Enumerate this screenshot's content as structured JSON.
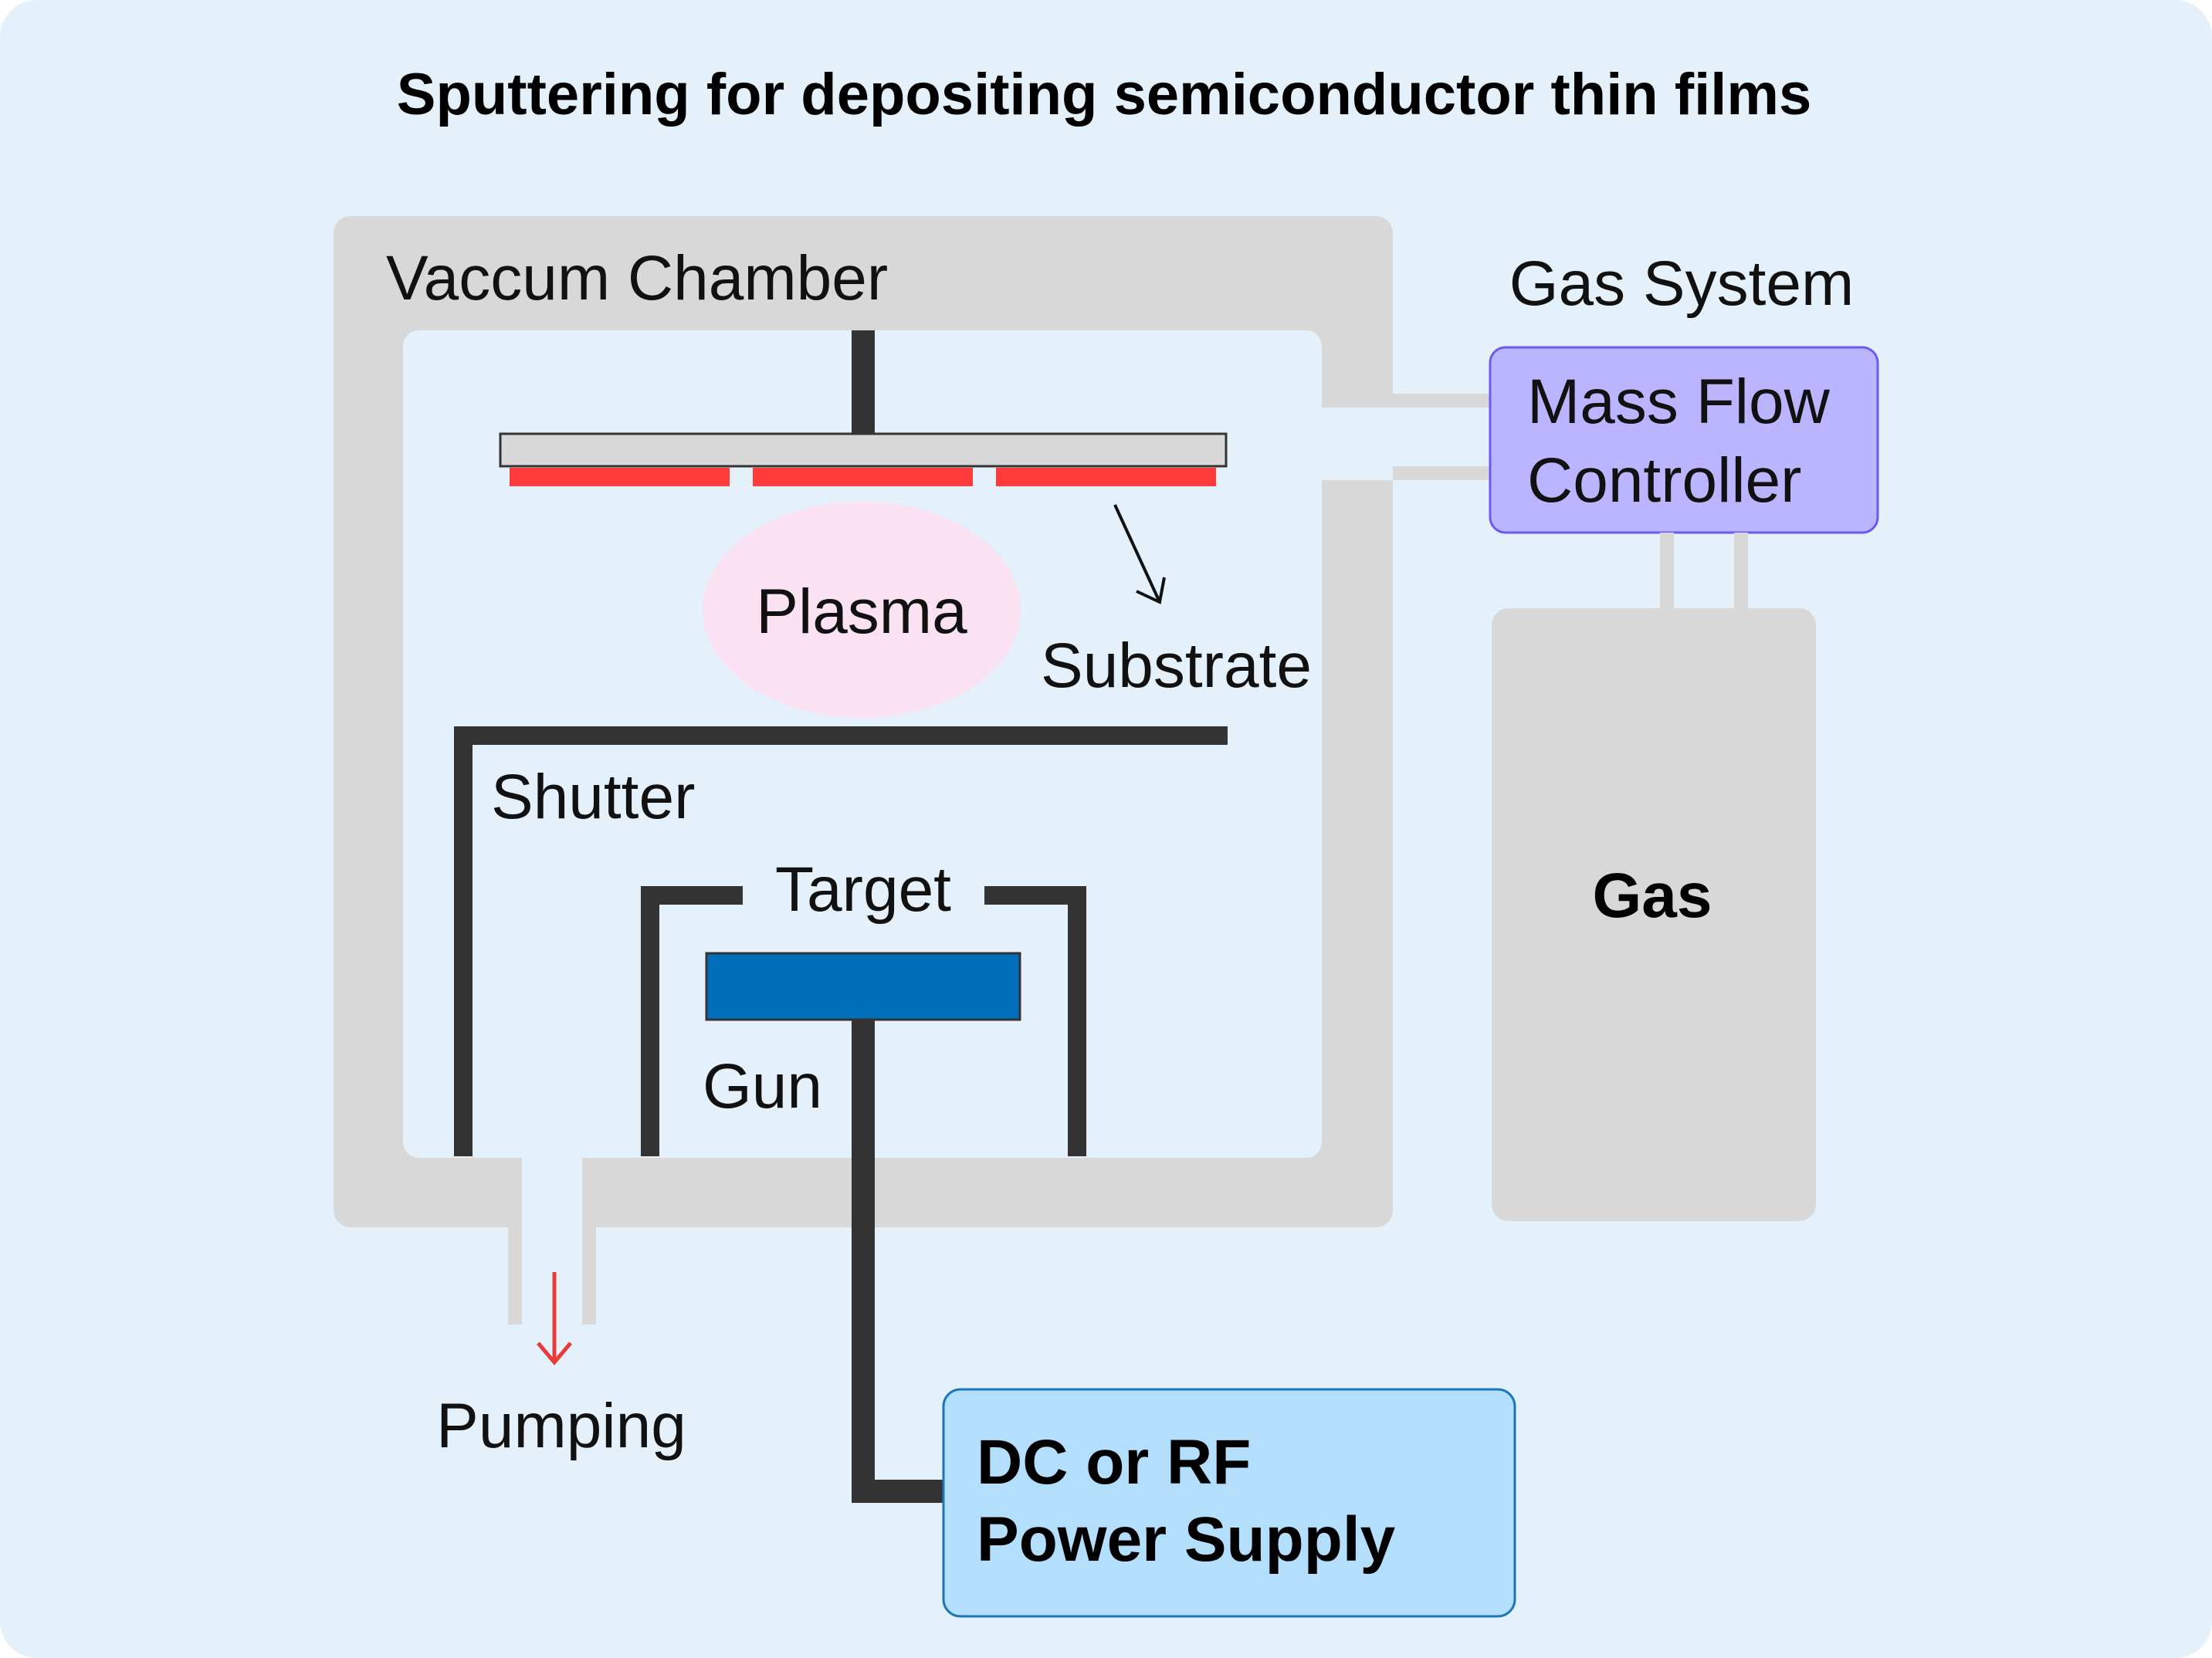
{
  "title": "Sputtering for depositing semiconductor thin films",
  "labels": {
    "vacuum_chamber": "Vaccum Chamber",
    "gas_system": "Gas System",
    "mass_flow_line1": "Mass Flow",
    "mass_flow_line2": "Controller",
    "plasma": "Plasma",
    "substrate": "Substrate",
    "shutter": "Shutter",
    "target": "Target",
    "gun": "Gun",
    "gas": "Gas",
    "pumping": "Pumping",
    "power_line1": "DC or RF",
    "power_line2": "Power Supply"
  },
  "colors": {
    "background": "#e4f0fa",
    "wall": "#d8d8d8",
    "inner": "#e4f0fa",
    "dark": "#333333",
    "substrate_plate": "#d8d8d8",
    "red_strip": "#ff3b3b",
    "plasma": "#fbe2f3",
    "target": "#006eba",
    "mass_flow": "#bbb5ff",
    "mass_flow_border": "#6a5af0",
    "power": "#b3dffd",
    "power_border": "#1a78b8",
    "pump_arrow": "#e83a3a"
  }
}
